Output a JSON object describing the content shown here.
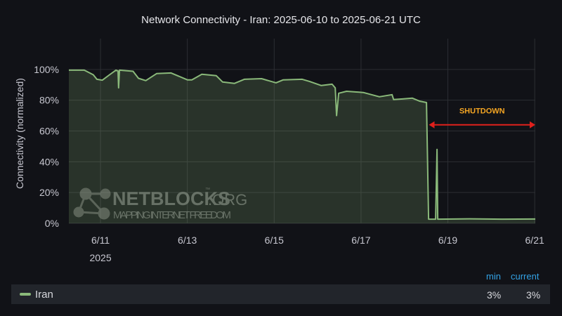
{
  "chart_data": {
    "type": "area",
    "title": "Network Connectivity - Iran: 2025-06-10 to 2025-06-21 UTC",
    "xlabel": "",
    "ylabel": "Connectivity (normalized)",
    "xlim": [
      "2025-06-10T06:30",
      "2025-06-21T00:20"
    ],
    "ylim": [
      0,
      120
    ],
    "grid": true,
    "x_ticks": [
      {
        "date": "2025-06-11",
        "label": "6/11",
        "sublabel": "2025"
      },
      {
        "date": "2025-06-13",
        "label": "6/13"
      },
      {
        "date": "2025-06-15",
        "label": "6/15"
      },
      {
        "date": "2025-06-17",
        "label": "6/17"
      },
      {
        "date": "2025-06-19",
        "label": "6/19"
      },
      {
        "date": "2025-06-21",
        "label": "6/21"
      }
    ],
    "y_ticks": [
      {
        "value": 0,
        "label": "0%"
      },
      {
        "value": 20,
        "label": "20%"
      },
      {
        "value": 40,
        "label": "40%"
      },
      {
        "value": 60,
        "label": "60%"
      },
      {
        "value": 80,
        "label": "80%"
      },
      {
        "value": 100,
        "label": "100%"
      }
    ],
    "series": [
      {
        "name": "Iran",
        "color": "#8ab97a",
        "points": [
          [
            "2025-06-10T06:30",
            99.5
          ],
          [
            "2025-06-10T15:00",
            99.5
          ],
          [
            "2025-06-10T20:00",
            96.5
          ],
          [
            "2025-06-10T22:00",
            93.6
          ],
          [
            "2025-06-11T01:00",
            93.0
          ],
          [
            "2025-06-11T05:00",
            96.5
          ],
          [
            "2025-06-11T08:30",
            99.5
          ],
          [
            "2025-06-11T09:40",
            99.0
          ],
          [
            "2025-06-11T10:00",
            88.0
          ],
          [
            "2025-06-11T10:30",
            99.5
          ],
          [
            "2025-06-11T18:00",
            98.8
          ],
          [
            "2025-06-11T21:00",
            94.2
          ],
          [
            "2025-06-12T01:00",
            92.7
          ],
          [
            "2025-06-12T07:00",
            97.3
          ],
          [
            "2025-06-12T15:00",
            97.7
          ],
          [
            "2025-06-13T00:00",
            93.2
          ],
          [
            "2025-06-13T02:30",
            93.2
          ],
          [
            "2025-06-13T08:00",
            96.8
          ],
          [
            "2025-06-13T16:00",
            95.9
          ],
          [
            "2025-06-13T19:30",
            91.8
          ],
          [
            "2025-06-14T02:00",
            90.9
          ],
          [
            "2025-06-14T07:30",
            93.6
          ],
          [
            "2025-06-14T17:00",
            94.0
          ],
          [
            "2025-06-15T01:00",
            91.3
          ],
          [
            "2025-06-15T05:00",
            93.2
          ],
          [
            "2025-06-15T15:30",
            93.6
          ],
          [
            "2025-06-15T19:30",
            92.2
          ],
          [
            "2025-06-16T02:00",
            89.5
          ],
          [
            "2025-06-16T08:00",
            90.4
          ],
          [
            "2025-06-16T09:45",
            88.0
          ],
          [
            "2025-06-16T10:30",
            70.0
          ],
          [
            "2025-06-16T11:40",
            84.5
          ],
          [
            "2025-06-16T16:00",
            85.8
          ],
          [
            "2025-06-17T01:15",
            85.0
          ],
          [
            "2025-06-17T10:10",
            82.2
          ],
          [
            "2025-06-17T17:10",
            83.6
          ],
          [
            "2025-06-17T18:00",
            80.4
          ],
          [
            "2025-06-17T23:00",
            80.8
          ],
          [
            "2025-06-18T04:25",
            81.3
          ],
          [
            "2025-06-18T08:20",
            79.4
          ],
          [
            "2025-06-18T12:10",
            78.5
          ],
          [
            "2025-06-18T13:20",
            2.7
          ],
          [
            "2025-06-18T17:15",
            2.7
          ],
          [
            "2025-06-18T18:00",
            48.0
          ],
          [
            "2025-06-18T18:25",
            2.7
          ],
          [
            "2025-06-19T12:00",
            2.9
          ],
          [
            "2025-06-20T06:00",
            2.7
          ],
          [
            "2025-06-21T00:20",
            2.8
          ]
        ]
      }
    ],
    "annotations": [
      {
        "text": "SHUTDOWN",
        "color": "#f5a623",
        "arrow_color": "#e0201c",
        "from": "2025-06-18T13:30",
        "to": "2025-06-21T00:20",
        "y": 64
      }
    ],
    "legend": {
      "placement": "bottom",
      "columns": [
        "min",
        "current"
      ],
      "rows": [
        {
          "name": "Iran",
          "min": "3%",
          "current": "3%"
        }
      ]
    },
    "watermark": {
      "brand": "NETBLOCKS",
      "suffix": ".ORG",
      "tm": "™",
      "tagline": "MAPPING INTERNET FREEDOM"
    }
  }
}
